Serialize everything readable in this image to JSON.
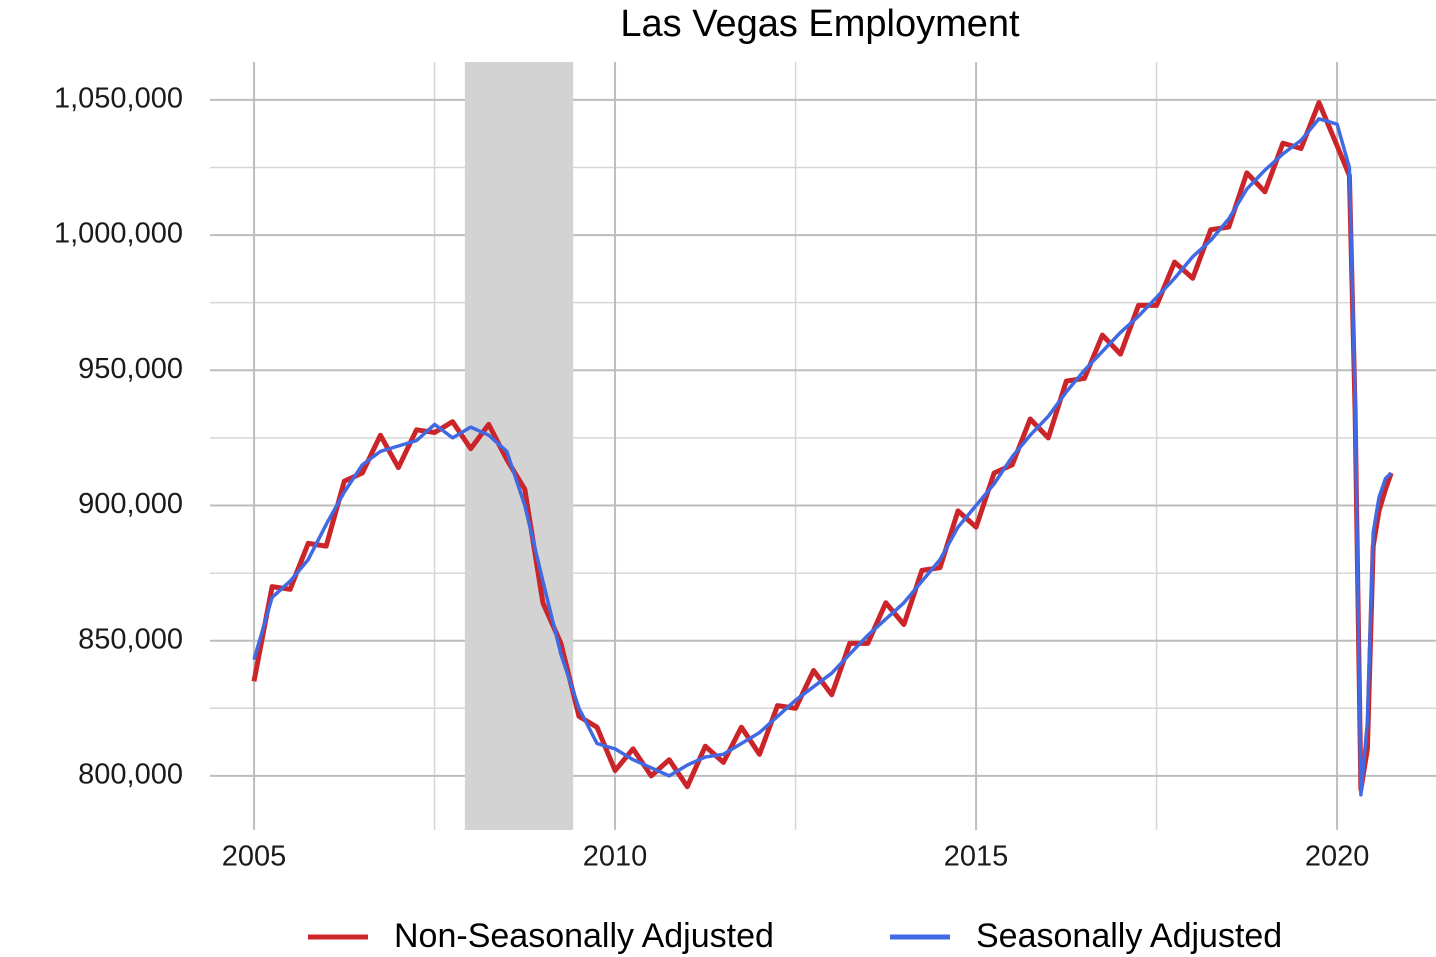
{
  "chart_data": {
    "type": "line",
    "title": "Las Vegas Employment",
    "x": [
      2005,
      2005.25,
      2005.5,
      2005.75,
      2006,
      2006.25,
      2006.5,
      2006.75,
      2007,
      2007.25,
      2007.5,
      2007.75,
      2008,
      2008.25,
      2008.5,
      2008.75,
      2009,
      2009.25,
      2009.5,
      2009.75,
      2010,
      2010.25,
      2010.5,
      2010.75,
      2011,
      2011.25,
      2011.5,
      2011.75,
      2012,
      2012.25,
      2012.5,
      2012.75,
      2013,
      2013.25,
      2013.5,
      2013.75,
      2014,
      2014.25,
      2014.5,
      2014.75,
      2015,
      2015.25,
      2015.5,
      2015.75,
      2016,
      2016.25,
      2016.5,
      2016.75,
      2017,
      2017.25,
      2017.5,
      2017.75,
      2018,
      2018.25,
      2018.5,
      2018.75,
      2019,
      2019.25,
      2019.5,
      2019.75,
      2020,
      2020.17,
      2020.25,
      2020.33,
      2020.42,
      2020.5,
      2020.58,
      2020.67,
      2020.75
    ],
    "series": [
      {
        "name": "Non-Seasonally Adjusted",
        "color": "#cc2529",
        "values": [
          835000,
          870000,
          869000,
          886000,
          885000,
          909000,
          912000,
          926000,
          914000,
          928000,
          927000,
          931000,
          921000,
          930000,
          917000,
          906000,
          864000,
          849000,
          822000,
          818000,
          802000,
          810000,
          800000,
          806000,
          796000,
          811000,
          805000,
          818000,
          808000,
          826000,
          825000,
          839000,
          830000,
          849000,
          849000,
          864000,
          856000,
          876000,
          877000,
          898000,
          892000,
          912000,
          915000,
          932000,
          925000,
          946000,
          947000,
          963000,
          956000,
          974000,
          974000,
          990000,
          984000,
          1002000,
          1003000,
          1023000,
          1016000,
          1034000,
          1032000,
          1049000,
          1033000,
          1022000,
          935000,
          795000,
          810000,
          885000,
          898000,
          906000,
          912000
        ]
      },
      {
        "name": "Seasonally Adjusted",
        "color": "#4169e1",
        "values": [
          843000,
          866000,
          872000,
          880000,
          893000,
          905000,
          915000,
          920000,
          922000,
          924000,
          930000,
          925000,
          929000,
          926000,
          920000,
          900000,
          872000,
          845000,
          825000,
          812000,
          810000,
          806000,
          803000,
          800000,
          804000,
          807000,
          808000,
          812000,
          816000,
          822000,
          828000,
          833000,
          838000,
          845000,
          852000,
          858000,
          864000,
          872000,
          880000,
          892000,
          900000,
          908000,
          918000,
          926000,
          933000,
          942000,
          950000,
          957000,
          964000,
          970000,
          977000,
          984000,
          992000,
          998000,
          1006000,
          1017000,
          1024000,
          1030000,
          1035000,
          1043000,
          1041000,
          1025000,
          940000,
          793000,
          820000,
          890000,
          903000,
          910000,
          912000
        ]
      }
    ],
    "xlim": [
      2004.39,
      2021.37
    ],
    "xticks": [
      2005,
      2010,
      2015,
      2020
    ],
    "ylim": [
      780000,
      1064000
    ],
    "yticks": [
      {
        "value": 800000,
        "label": "800,000"
      },
      {
        "value": 850000,
        "label": "850,000"
      },
      {
        "value": 900000,
        "label": "900,000"
      },
      {
        "value": 950000,
        "label": "950,000"
      },
      {
        "value": 1000000,
        "label": "1,000,000"
      },
      {
        "value": 1050000,
        "label": "1,050,000"
      }
    ],
    "grid": true,
    "shaded_regions": [
      [
        2007.92,
        2009.42
      ]
    ],
    "legend": "bottom"
  }
}
